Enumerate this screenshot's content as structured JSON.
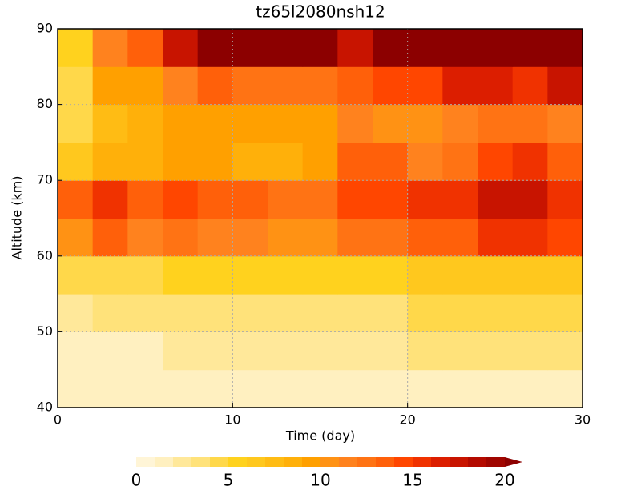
{
  "chart_data": {
    "type": "heatmap",
    "title": "tz65l2080nsh12",
    "xlabel": "Time (day)",
    "ylabel": "Altitude (km)",
    "x_edges": [
      0,
      2,
      4,
      6,
      8,
      10,
      12,
      14,
      16,
      18,
      20,
      22,
      24,
      26,
      28,
      30
    ],
    "y_edges": [
      40,
      45,
      50,
      55,
      60,
      65,
      70,
      75,
      80,
      85,
      90
    ],
    "z": [
      [
        1,
        1,
        1,
        1,
        1,
        1,
        1,
        1,
        1,
        1,
        1,
        1,
        1,
        1,
        1
      ],
      [
        1,
        1,
        1,
        2,
        2,
        2,
        2,
        2,
        2,
        2,
        3,
        3,
        3,
        3,
        3
      ],
      [
        2,
        3,
        3,
        3,
        3,
        3,
        3,
        3,
        3,
        3,
        4,
        4,
        4,
        4,
        4
      ],
      [
        4,
        4,
        4,
        5,
        5,
        5,
        5,
        5,
        5,
        5,
        6,
        6,
        6,
        6,
        6
      ],
      [
        10,
        13,
        11,
        12,
        11,
        11,
        10,
        10,
        12,
        12,
        13,
        13,
        15,
        15,
        14
      ],
      [
        13,
        15,
        13,
        14,
        13,
        13,
        12,
        12,
        14,
        14,
        15,
        15,
        17,
        17,
        15
      ],
      [
        6,
        8,
        8,
        9,
        9,
        8,
        8,
        9,
        13,
        13,
        11,
        12,
        14,
        15,
        13
      ],
      [
        4,
        7,
        8,
        9,
        9,
        9,
        9,
        9,
        11,
        10,
        10,
        11,
        12,
        12,
        11
      ],
      [
        4,
        9,
        9,
        11,
        13,
        12,
        12,
        12,
        13,
        14,
        14,
        16,
        16,
        15,
        17
      ],
      [
        5,
        11,
        13,
        17,
        21,
        21,
        21,
        20,
        17,
        21,
        21,
        21,
        21,
        21,
        21
      ]
    ],
    "xlim": [
      0,
      30
    ],
    "xticks": [
      0,
      10,
      20,
      30
    ],
    "ylim": [
      40,
      90
    ],
    "yticks": [
      40,
      50,
      60,
      70,
      80,
      90
    ],
    "grid": true,
    "colorbar": {
      "levels": [
        0,
        1,
        2,
        3,
        4,
        5,
        6,
        7,
        8,
        9,
        10,
        11,
        12,
        13,
        14,
        15,
        16,
        17,
        18,
        19,
        20
      ],
      "colors": [
        "#fff5d7",
        "#fff0c0",
        "#ffe89a",
        "#ffe27a",
        "#ffd84a",
        "#ffd21e",
        "#ffc81e",
        "#ffbc14",
        "#ffb00a",
        "#ffa000",
        "#ff9214",
        "#ff821e",
        "#ff7314",
        "#ff600a",
        "#ff4600",
        "#f03200",
        "#dc1e00",
        "#c81400",
        "#b40a00",
        "#a00500",
        "#8c0000"
      ],
      "ticks": [
        0,
        5,
        10,
        15,
        20
      ]
    }
  }
}
